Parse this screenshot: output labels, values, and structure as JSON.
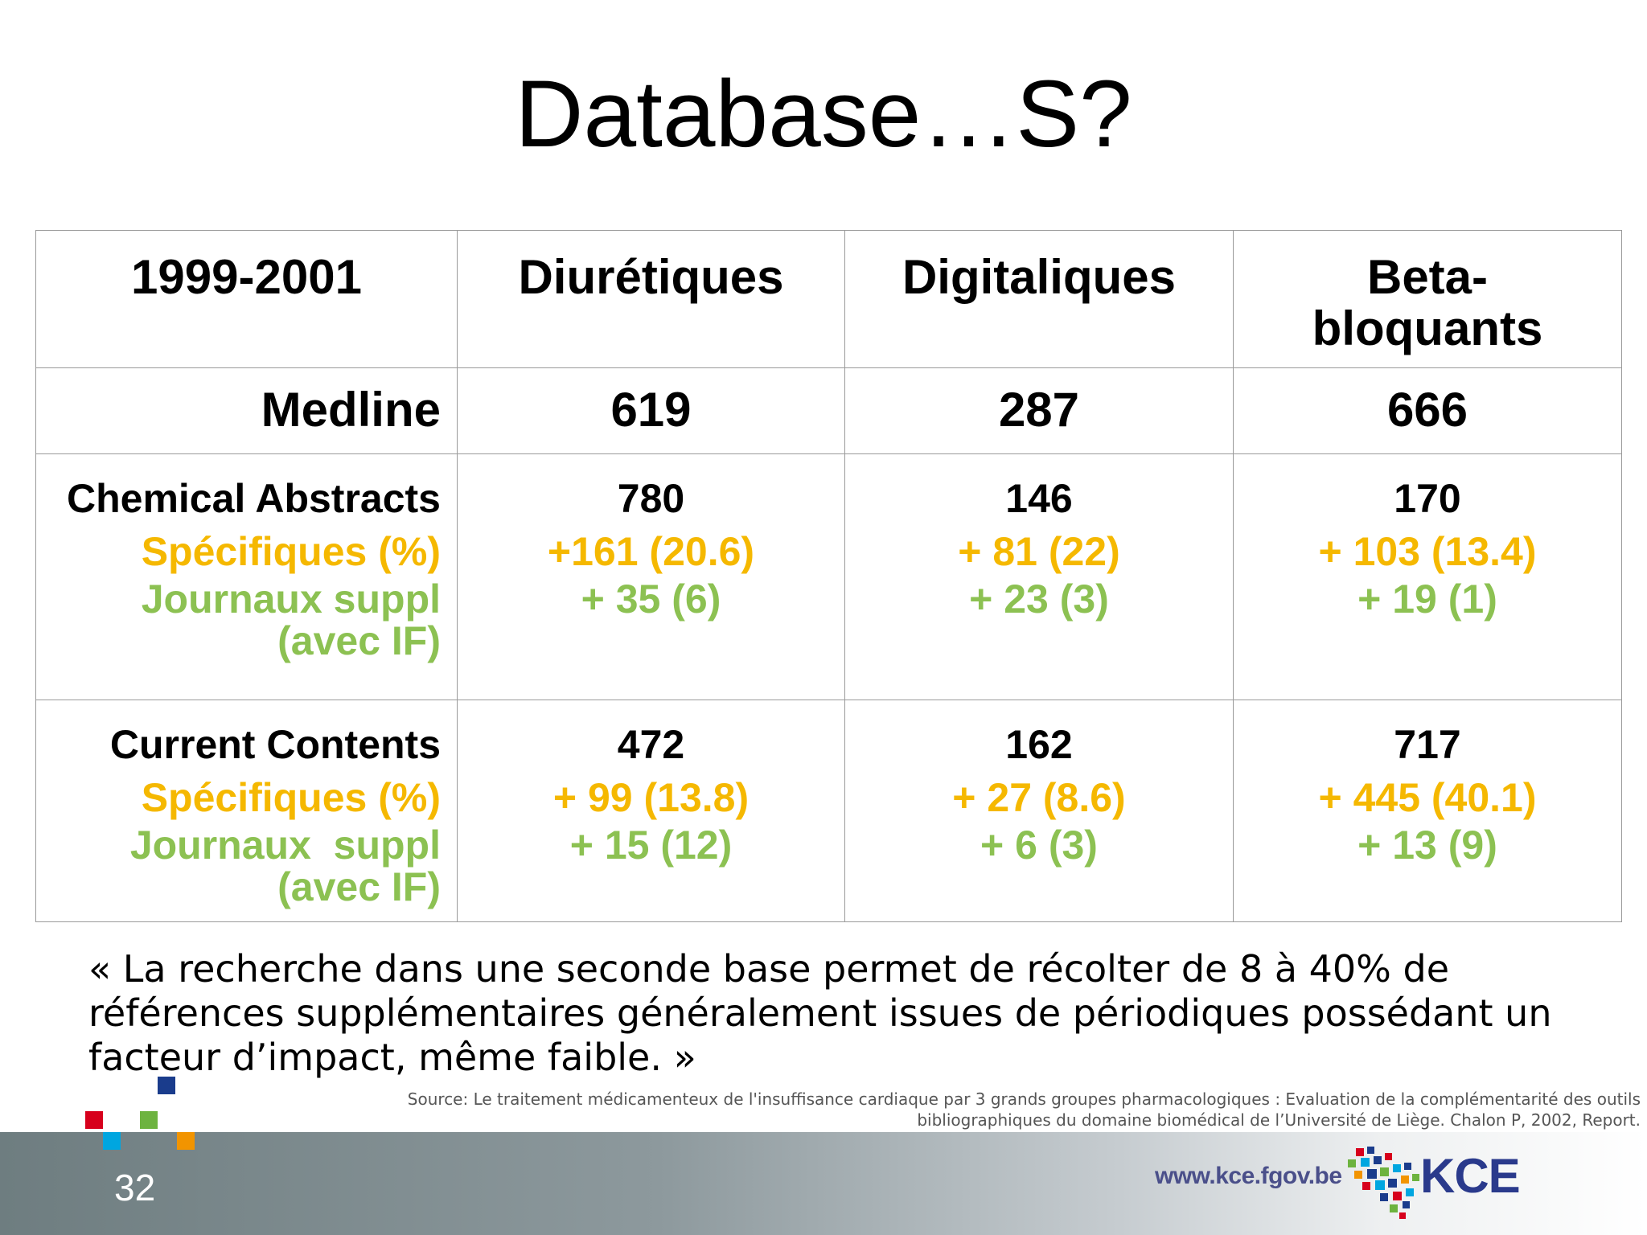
{
  "title": "Database…S?",
  "table": {
    "header": [
      "1999-2001",
      "Diurétiques",
      "Digitaliques",
      "Beta-\nbloquants"
    ],
    "medline": {
      "label": "Medline",
      "values": [
        "619",
        "287",
        "666"
      ]
    },
    "chemical_abstracts": {
      "label": "Chemical Abstracts",
      "specifiques_label": "Spécifiques (%)",
      "journaux_label_1": "Journaux suppl",
      "journaux_label_2": "(avec IF)",
      "totals": [
        "780",
        "146",
        "170"
      ],
      "specifiques": [
        "+161 (20.6)",
        "+ 81 (22)",
        "+ 103 (13.4)"
      ],
      "journaux": [
        "+ 35 (6)",
        "+ 23 (3)",
        "+ 19 (1)"
      ]
    },
    "current_contents": {
      "label": "Current Contents",
      "specifiques_label": "Spécifiques (%)",
      "journaux_label_1": "Journaux  suppl",
      "journaux_label_2": "(avec IF)",
      "totals": [
        "472",
        "162",
        "717"
      ],
      "specifiques": [
        "+ 99 (13.8)",
        "+ 27 (8.6)",
        "+ 445 (40.1)"
      ],
      "journaux": [
        "+ 15 (12)",
        "+ 6 (3)",
        "+ 13 (9)"
      ]
    }
  },
  "quote": "« La recherche dans une seconde base permet de récolter de 8 à 40% de références supplémentaires généralement issues de périodiques possédant un facteur d’impact, même faible. »",
  "source_line1": "Source: Le traitement médicamenteux de l'insuffisance cardiaque par 3 grands groupes pharmacologiques : Evaluation de la complémentarité des outils",
  "source_line2": "bibliographiques du domaine biomédical de l’Université de Liège. Chalon P, 2002, Report.",
  "footer": {
    "page_number": "32",
    "url": "www.kce.fgov.be",
    "logo_text": "KCE",
    "colors": {
      "red": "#d7001c",
      "blue": "#1a3c8c",
      "cyan": "#00a6e0",
      "green": "#6db33f",
      "orange": "#f29400"
    }
  }
}
